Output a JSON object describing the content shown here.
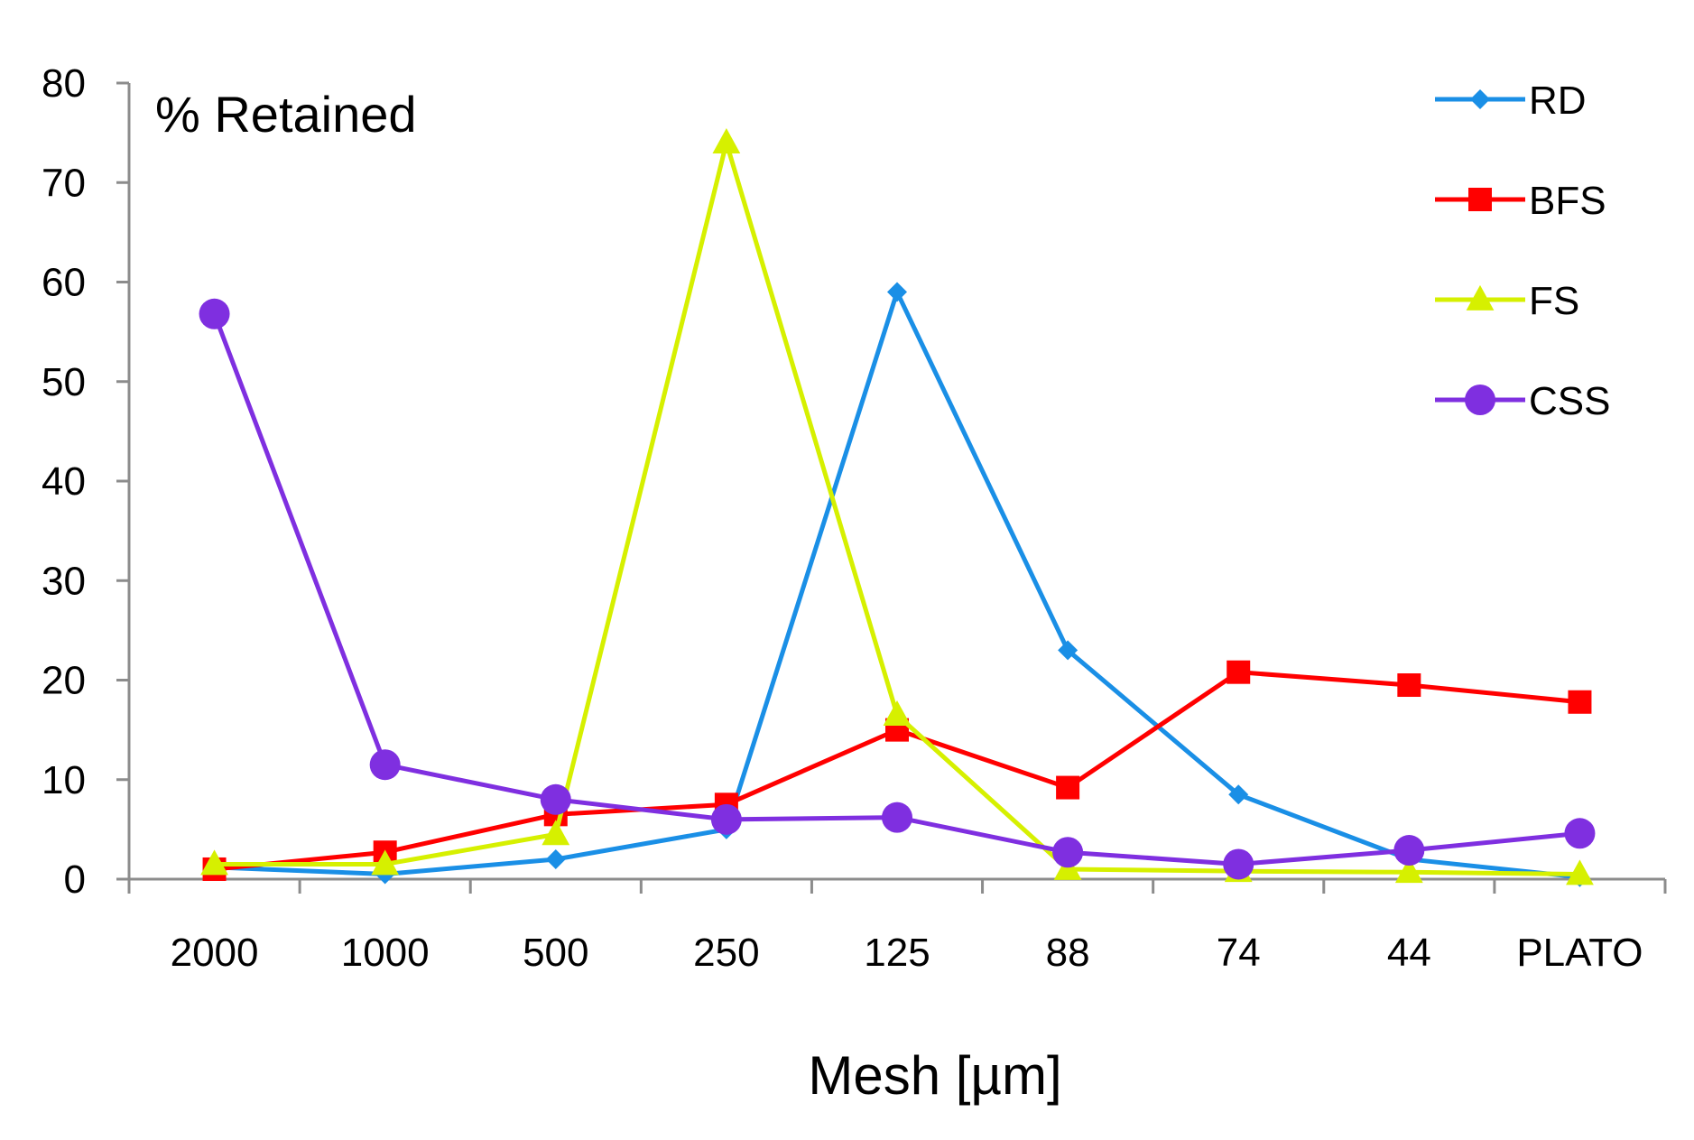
{
  "chart_data": {
    "type": "line",
    "title": "",
    "ylabel": "% Retained",
    "xlabel": "Mesh [µm]",
    "categories": [
      "2000",
      "1000",
      "500",
      "250",
      "125",
      "88",
      "74",
      "44",
      "PLATO"
    ],
    "ylim": [
      0,
      80
    ],
    "yticks": [
      0,
      10,
      20,
      30,
      40,
      50,
      60,
      70,
      80
    ],
    "grid": false,
    "legend_position": "top-right",
    "series": [
      {
        "name": "RD",
        "color": "#1a8fe6",
        "marker": "diamond",
        "values": [
          1.2,
          0.5,
          2.0,
          5.0,
          59.0,
          23.0,
          8.5,
          2.0,
          0.2
        ]
      },
      {
        "name": "BFS",
        "color": "#ff0000",
        "marker": "square",
        "values": [
          1.0,
          2.7,
          6.5,
          7.5,
          15.0,
          9.2,
          20.8,
          19.5,
          17.8
        ]
      },
      {
        "name": "FS",
        "color": "#d6f000",
        "marker": "triangle",
        "values": [
          1.5,
          1.5,
          4.5,
          74.0,
          16.5,
          1.0,
          0.8,
          0.7,
          0.5
        ]
      },
      {
        "name": "CSS",
        "color": "#7f2fe0",
        "marker": "circle",
        "values": [
          56.8,
          11.5,
          8.0,
          6.0,
          6.2,
          2.7,
          1.5,
          2.9,
          4.6
        ]
      }
    ]
  }
}
